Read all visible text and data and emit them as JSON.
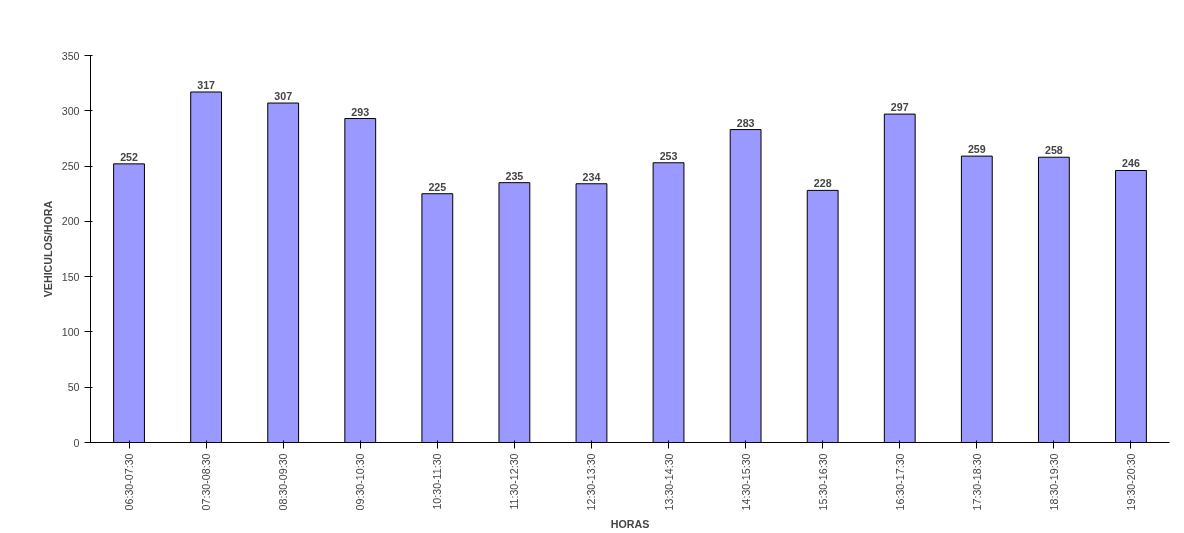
{
  "chart_data": {
    "type": "bar",
    "xlabel": "HORAS",
    "ylabel": "VEHICULOS/HORA",
    "categories": [
      "06:30-07:30",
      "07:30-08:30",
      "08:30-09:30",
      "09:30-10:30",
      "10:30-11:30",
      "11:30-12:30",
      "12:30-13:30",
      "13:30-14:30",
      "14:30-15:30",
      "15:30-16:30",
      "16:30-17:30",
      "17:30-18:30",
      "18:30-19:30",
      "19:30-20:30"
    ],
    "values": [
      252,
      317,
      307,
      293,
      225,
      235,
      234,
      253,
      283,
      228,
      297,
      259,
      258,
      246
    ],
    "color": "#9999ff",
    "ylim": [
      0,
      350
    ],
    "yticks": [
      0,
      50,
      100,
      150,
      200,
      250,
      300,
      350
    ],
    "data_labels": true,
    "grid": false
  }
}
